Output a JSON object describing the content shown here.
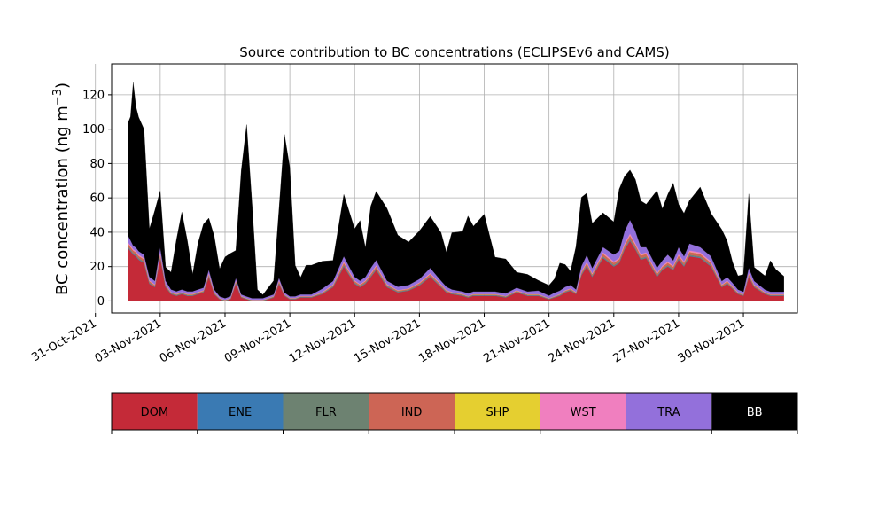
{
  "chart_data": {
    "type": "area",
    "title": "Source contribution to BC concentrations (ECLIPSEv6 and CAMS)",
    "ylabel": "BC concentration (ng m",
    "ylabel_sup": "−3",
    "ylabel_close": ")",
    "xlabel": "",
    "ylim": [
      -7,
      138
    ],
    "xlim": [
      "2021-10-31T18:00",
      "2021-12-02T12:00"
    ],
    "yticks": [
      0,
      20,
      40,
      60,
      80,
      100,
      120
    ],
    "xticks": [
      "31-Oct-2021",
      "03-Nov-2021",
      "06-Nov-2021",
      "09-Nov-2021",
      "12-Nov-2021",
      "15-Nov-2021",
      "18-Nov-2021",
      "21-Nov-2021",
      "24-Nov-2021",
      "27-Nov-2021",
      "30-Nov-2021"
    ],
    "grid": true,
    "legend_placement": "colorbar-below",
    "x": [
      "2021-11-01T12:00",
      "2021-11-01T15:00",
      "2021-11-01T18:00",
      "2021-11-01T21:00",
      "2021-11-02T00:00",
      "2021-11-02T06:00",
      "2021-11-02T12:00",
      "2021-11-02T18:00",
      "2021-11-03T00:00",
      "2021-11-03T06:00",
      "2021-11-03T12:00",
      "2021-11-03T18:00",
      "2021-11-04T00:00",
      "2021-11-04T06:00",
      "2021-11-04T12:00",
      "2021-11-04T18:00",
      "2021-11-05T00:00",
      "2021-11-05T06:00",
      "2021-11-05T12:00",
      "2021-11-05T18:00",
      "2021-11-06T00:00",
      "2021-11-06T06:00",
      "2021-11-06T12:00",
      "2021-11-06T18:00",
      "2021-11-07T00:00",
      "2021-11-07T06:00",
      "2021-11-07T12:00",
      "2021-11-07T18:00",
      "2021-11-08T00:00",
      "2021-11-08T06:00",
      "2021-11-08T12:00",
      "2021-11-08T18:00",
      "2021-11-09T00:00",
      "2021-11-09T06:00",
      "2021-11-09T12:00",
      "2021-11-09T18:00",
      "2021-11-10T00:00",
      "2021-11-10T12:00",
      "2021-11-11T00:00",
      "2021-11-11T12:00",
      "2021-11-12T00:00",
      "2021-11-12T06:00",
      "2021-11-12T12:00",
      "2021-11-12T18:00",
      "2021-11-13T00:00",
      "2021-11-13T12:00",
      "2021-11-14T00:00",
      "2021-11-14T12:00",
      "2021-11-15T00:00",
      "2021-11-15T12:00",
      "2021-11-16T00:00",
      "2021-11-16T06:00",
      "2021-11-16T12:00",
      "2021-11-17T00:00",
      "2021-11-17T06:00",
      "2021-11-17T12:00",
      "2021-11-18T00:00",
      "2021-11-18T12:00",
      "2021-11-19T00:00",
      "2021-11-19T12:00",
      "2021-11-20T00:00",
      "2021-11-20T12:00",
      "2021-11-21T00:00",
      "2021-11-21T06:00",
      "2021-11-21T12:00",
      "2021-11-21T18:00",
      "2021-11-22T00:00",
      "2021-11-22T06:00",
      "2021-11-22T12:00",
      "2021-11-22T18:00",
      "2021-11-23T00:00",
      "2021-11-23T12:00",
      "2021-11-24T00:00",
      "2021-11-24T06:00",
      "2021-11-24T12:00",
      "2021-11-24T18:00",
      "2021-11-25T00:00",
      "2021-11-25T06:00",
      "2021-11-25T12:00",
      "2021-11-26T00:00",
      "2021-11-26T06:00",
      "2021-11-26T12:00",
      "2021-11-26T18:00",
      "2021-11-27T00:00",
      "2021-11-27T06:00",
      "2021-11-27T12:00",
      "2021-11-28T00:00",
      "2021-11-28T12:00",
      "2021-11-29T00:00",
      "2021-11-29T06:00",
      "2021-11-29T12:00",
      "2021-11-29T18:00",
      "2021-11-30T00:00",
      "2021-11-30T06:00",
      "2021-11-30T12:00",
      "2021-12-01T00:00",
      "2021-12-01T06:00",
      "2021-12-01T12:00",
      "2021-12-01T21:00"
    ],
    "series": [
      {
        "name": "DOM",
        "color": "#c42a38",
        "values": [
          31,
          29,
          27,
          26,
          24,
          22,
          10,
          8,
          25,
          8,
          4,
          3,
          4,
          3,
          3,
          4,
          5,
          14,
          4,
          1,
          0,
          1,
          10,
          2,
          1,
          0,
          0,
          0,
          1,
          2,
          10,
          3,
          1,
          1,
          2,
          2,
          2,
          4,
          8,
          20,
          10,
          8,
          10,
          14,
          18,
          8,
          5,
          6,
          9,
          14,
          8,
          5,
          4,
          3,
          2,
          3,
          3,
          3,
          2,
          5,
          3,
          3,
          1,
          2,
          3,
          5,
          6,
          4,
          15,
          20,
          14,
          25,
          20,
          22,
          30,
          35,
          30,
          24,
          25,
          14,
          18,
          20,
          18,
          24,
          20,
          26,
          25,
          20,
          8,
          10,
          7,
          4,
          3,
          14,
          8,
          4,
          3,
          3,
          3
        ]
      },
      {
        "name": "ENE",
        "color": "#3a7ab3",
        "values": [
          0.3,
          0.3,
          0.3,
          0.3,
          0.3,
          0.3,
          0.2,
          0.2,
          0.3,
          0.2,
          0.1,
          0.1,
          0.1,
          0.1,
          0.1,
          0.1,
          0.1,
          0.2,
          0.1,
          0,
          0,
          0,
          0.2,
          0.1,
          0,
          0,
          0,
          0,
          0,
          0.1,
          0.2,
          0.1,
          0,
          0,
          0.1,
          0.1,
          0.1,
          0.1,
          0.2,
          0.3,
          0.2,
          0.2,
          0.2,
          0.2,
          0.3,
          0.2,
          0.1,
          0.1,
          0.2,
          0.2,
          0.2,
          0.1,
          0.1,
          0.1,
          0.1,
          0.1,
          0.1,
          0.1,
          0.1,
          0.1,
          0.1,
          0.1,
          0,
          0.1,
          0.1,
          0.1,
          0.1,
          0.1,
          0.2,
          0.3,
          0.2,
          0.3,
          0.3,
          0.3,
          0.3,
          0.4,
          0.3,
          0.3,
          0.3,
          0.2,
          0.2,
          0.3,
          0.2,
          0.3,
          0.3,
          0.3,
          0.3,
          0.3,
          0.1,
          0.2,
          0.1,
          0.1,
          0.1,
          0.2,
          0.1,
          0.1,
          0.1,
          0.1,
          0.1
        ]
      },
      {
        "name": "FLR",
        "color": "#6d8271",
        "values": [
          0.6,
          0.6,
          0.6,
          0.6,
          0.6,
          0.6,
          0.5,
          0.5,
          0.6,
          0.5,
          0.4,
          0.4,
          0.4,
          0.4,
          0.4,
          0.4,
          0.4,
          0.5,
          0.4,
          0.3,
          0.3,
          0.3,
          0.5,
          0.3,
          0.3,
          0.3,
          0.3,
          0.3,
          0.3,
          0.3,
          0.5,
          0.3,
          0.3,
          0.3,
          0.3,
          0.3,
          0.3,
          0.3,
          0.4,
          0.6,
          0.5,
          0.5,
          0.5,
          0.5,
          0.6,
          0.5,
          0.4,
          0.4,
          0.5,
          0.5,
          0.5,
          0.4,
          0.4,
          0.4,
          0.4,
          0.4,
          0.4,
          0.4,
          0.4,
          0.4,
          0.4,
          0.4,
          0.3,
          0.3,
          0.4,
          0.4,
          0.4,
          0.4,
          0.5,
          0.6,
          0.5,
          0.6,
          0.6,
          0.6,
          0.6,
          0.7,
          0.6,
          0.6,
          0.6,
          0.5,
          0.5,
          0.6,
          0.5,
          0.6,
          0.6,
          0.6,
          0.6,
          0.6,
          0.4,
          0.4,
          0.4,
          0.3,
          0.3,
          0.5,
          0.4,
          0.3,
          0.3,
          0.3,
          0.3
        ]
      },
      {
        "name": "IND",
        "color": "#cd6555",
        "values": [
          1.5,
          1.5,
          1.4,
          1.4,
          1.3,
          1.3,
          0.8,
          0.6,
          1.4,
          0.6,
          0.4,
          0.3,
          0.4,
          0.3,
          0.3,
          0.4,
          0.4,
          0.9,
          0.4,
          0.2,
          0.1,
          0.2,
          0.7,
          0.2,
          0.1,
          0.1,
          0.1,
          0.1,
          0.2,
          0.2,
          0.8,
          0.3,
          0.2,
          0.2,
          0.2,
          0.2,
          0.2,
          0.4,
          0.6,
          1.3,
          0.8,
          0.7,
          0.8,
          1,
          1.2,
          0.7,
          0.5,
          0.5,
          0.7,
          0.9,
          0.7,
          0.5,
          0.4,
          0.3,
          0.2,
          0.3,
          0.3,
          0.3,
          0.2,
          0.4,
          0.3,
          0.3,
          0.1,
          0.2,
          0.3,
          0.4,
          0.5,
          0.4,
          1,
          1.2,
          0.9,
          1.5,
          1.3,
          1.4,
          1.7,
          2,
          1.8,
          1.5,
          1.5,
          1,
          1.2,
          1.3,
          1.2,
          1.5,
          1.3,
          1.6,
          1.5,
          1.3,
          0.7,
          0.8,
          0.6,
          0.4,
          0.3,
          1,
          0.7,
          0.4,
          0.3,
          0.3,
          0.3
        ]
      },
      {
        "name": "SHP",
        "color": "#e5cf30",
        "values": [
          0.1,
          0.1,
          0.1,
          0.1,
          0.1,
          0.1,
          0.1,
          0.1,
          0.1,
          0.1,
          0.1,
          0.1,
          0.1,
          0.1,
          0.1,
          0.1,
          0.1,
          0.1,
          0.1,
          0.1,
          0.1,
          0.1,
          0.1,
          0.1,
          0.1,
          0.1,
          0.1,
          0.1,
          0.1,
          0.1,
          0.1,
          0.1,
          0.1,
          0.1,
          0.1,
          0.1,
          0.1,
          0.1,
          0.1,
          0.1,
          0.1,
          0.1,
          0.1,
          0.1,
          0.1,
          0.1,
          0.1,
          0.1,
          0.1,
          0.1,
          0.1,
          0.1,
          0.1,
          0.1,
          0.1,
          0.1,
          0.1,
          0.1,
          0.1,
          0.1,
          0.1,
          0.1,
          0.1,
          0.1,
          0.1,
          0.1,
          0.1,
          0.1,
          0.1,
          0.1,
          0.1,
          0.1,
          0.1,
          0.1,
          0.1,
          0.1,
          0.1,
          0.1,
          0.1,
          0.1,
          0.1,
          0.1,
          0.1,
          0.1,
          0.1,
          0.1,
          0.1,
          0.1,
          0.1,
          0.1,
          0.1,
          0.1,
          0.1,
          0.1,
          0.1,
          0.1,
          0.1,
          0.1,
          0.1
        ]
      },
      {
        "name": "WST",
        "color": "#f07fbf",
        "values": [
          0.8,
          0.8,
          0.7,
          0.7,
          0.7,
          0.6,
          0.4,
          0.3,
          0.7,
          0.3,
          0.2,
          0.2,
          0.2,
          0.2,
          0.2,
          0.2,
          0.2,
          0.5,
          0.2,
          0.1,
          0.1,
          0.1,
          0.4,
          0.1,
          0.1,
          0.1,
          0.1,
          0.1,
          0.1,
          0.1,
          0.4,
          0.1,
          0.1,
          0.1,
          0.1,
          0.1,
          0.1,
          0.2,
          0.3,
          0.7,
          0.4,
          0.3,
          0.4,
          0.5,
          0.6,
          0.3,
          0.2,
          0.2,
          0.3,
          0.5,
          0.3,
          0.2,
          0.2,
          0.1,
          0.1,
          0.1,
          0.1,
          0.1,
          0.1,
          0.2,
          0.1,
          0.1,
          0.1,
          0.1,
          0.1,
          0.2,
          0.2,
          0.2,
          0.5,
          0.6,
          0.5,
          0.8,
          0.7,
          0.7,
          0.9,
          1,
          0.9,
          0.8,
          0.8,
          0.5,
          0.6,
          0.7,
          0.6,
          0.8,
          0.7,
          0.8,
          0.8,
          0.7,
          0.3,
          0.4,
          0.3,
          0.2,
          0.1,
          0.5,
          0.3,
          0.2,
          0.1,
          0.1,
          0.1
        ]
      },
      {
        "name": "TRA",
        "color": "#9370db",
        "values": [
          4,
          3,
          2,
          2,
          2,
          2,
          2,
          2,
          3,
          2,
          1.5,
          1.5,
          1.5,
          1.5,
          1.5,
          1.5,
          1.5,
          2,
          1.5,
          1,
          1,
          1,
          1.5,
          1,
          1,
          1,
          1,
          1,
          1,
          1,
          1.5,
          1,
          1,
          1,
          1,
          1,
          1,
          2,
          2,
          3,
          2,
          2,
          2,
          3,
          3,
          2,
          2,
          2,
          2,
          3,
          2,
          2,
          1.5,
          1.5,
          1.5,
          1.5,
          1.5,
          1.5,
          1.5,
          1.5,
          1.5,
          2,
          1.5,
          2,
          2,
          2,
          2,
          1.5,
          3,
          4,
          3,
          3,
          4,
          4,
          7,
          8,
          7,
          4,
          3,
          3,
          3,
          4,
          3,
          4,
          3,
          4,
          3,
          3,
          2,
          2,
          2,
          1.5,
          1.5,
          3,
          2,
          1.5,
          1.5,
          1.5,
          1.5
        ]
      },
      {
        "name": "BB",
        "color": "#000000",
        "values": [
          65,
          72,
          95,
          82,
          78,
          73,
          28,
          41,
          33,
          8,
          10,
          30,
          45,
          30,
          10,
          27,
          37,
          30,
          31,
          16,
          24,
          25,
          16,
          72,
          100,
          55,
          5,
          2,
          5,
          8,
          40,
          92,
          75,
          18,
          10,
          17,
          17,
          16,
          12,
          36,
          28,
          35,
          17,
          36,
          40,
          42,
          30,
          25,
          28,
          30,
          28,
          20,
          33,
          35,
          45,
          38,
          45,
          20,
          20,
          9,
          10,
          6,
          6,
          8,
          16,
          13,
          8,
          25,
          40,
          36,
          26,
          20,
          19,
          36,
          32,
          29,
          30,
          27,
          25,
          45,
          30,
          35,
          45,
          25,
          25,
          25,
          35,
          25,
          30,
          21,
          12,
          8,
          10,
          43,
          8,
          8,
          18,
          13,
          9
        ]
      }
    ],
    "legend": [
      {
        "name": "DOM",
        "color": "#c42a38",
        "text_color": "#000000"
      },
      {
        "name": "ENE",
        "color": "#3a7ab3",
        "text_color": "#000000"
      },
      {
        "name": "FLR",
        "color": "#6d8271",
        "text_color": "#000000"
      },
      {
        "name": "IND",
        "color": "#cd6555",
        "text_color": "#000000"
      },
      {
        "name": "SHP",
        "color": "#e5cf30",
        "text_color": "#000000"
      },
      {
        "name": "WST",
        "color": "#f07fbf",
        "text_color": "#000000"
      },
      {
        "name": "TRA",
        "color": "#9370db",
        "text_color": "#000000"
      },
      {
        "name": "BB",
        "color": "#000000",
        "text_color": "#ffffff"
      }
    ]
  }
}
